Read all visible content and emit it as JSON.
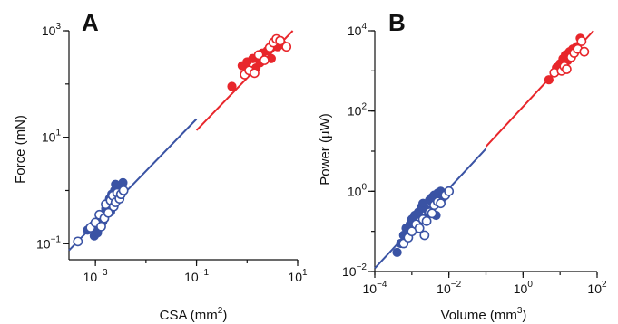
{
  "colors": {
    "blue": "#3a53a4",
    "red": "#e8262b",
    "axis": "#111111"
  },
  "chart_data": [
    {
      "type": "scatter",
      "panel_label": "A",
      "xlabel": "CSA (mm",
      "xlabel_sup": "2",
      "xlabel_end": ")",
      "ylabel": "Force (mN)",
      "x_scale": "log",
      "y_scale": "log",
      "xlim": [
        0.0003,
        10
      ],
      "ylim": [
        0.05,
        1000
      ],
      "x_ticks": [
        {
          "value": 0.001,
          "base": "10",
          "exp": "−3"
        },
        {
          "value": 0.1,
          "base": "10",
          "exp": "−1"
        },
        {
          "value": 10,
          "base": "10",
          "exp": "1"
        }
      ],
      "y_ticks": [
        {
          "value": 0.1,
          "base": "10",
          "exp": "−1"
        },
        {
          "value": 10,
          "base": "10",
          "exp": "1"
        },
        {
          "value": 1000,
          "base": "10",
          "exp": "3"
        }
      ],
      "fit_lines": [
        {
          "color": "blue",
          "points": [
            [
              0.0003,
              0.075
            ],
            [
              0.1,
              22
            ]
          ]
        },
        {
          "color": "red",
          "points": [
            [
              0.1,
              13.5
            ],
            [
              8,
              1000
            ]
          ]
        }
      ],
      "series": [
        {
          "color": "blue",
          "fill": "filled",
          "points": [
            [
              0.00095,
              0.14
            ],
            [
              0.0011,
              0.16
            ],
            [
              0.0012,
              0.22
            ],
            [
              0.0013,
              0.3
            ],
            [
              0.0014,
              0.26
            ],
            [
              0.0016,
              0.45
            ],
            [
              0.0017,
              0.5
            ],
            [
              0.0018,
              0.6
            ],
            [
              0.0019,
              0.7
            ],
            [
              0.002,
              0.4
            ],
            [
              0.0021,
              0.85
            ],
            [
              0.0022,
              0.55
            ],
            [
              0.0024,
              1.0
            ],
            [
              0.0026,
              0.75
            ],
            [
              0.0028,
              1.2
            ],
            [
              0.003,
              1.1
            ],
            [
              0.0032,
              1.0
            ],
            [
              0.0035,
              1.4
            ],
            [
              0.0025,
              1.3
            ],
            [
              0.0015,
              0.35
            ],
            [
              0.0009,
              0.22
            ],
            [
              0.0007,
              0.18
            ]
          ]
        },
        {
          "color": "blue",
          "fill": "open",
          "points": [
            [
              0.00045,
              0.11
            ],
            [
              0.0008,
              0.2
            ],
            [
              0.001,
              0.25
            ],
            [
              0.0012,
              0.35
            ],
            [
              0.0013,
              0.21
            ],
            [
              0.0015,
              0.3
            ],
            [
              0.0016,
              0.55
            ],
            [
              0.0018,
              0.38
            ],
            [
              0.002,
              0.65
            ],
            [
              0.0022,
              0.8
            ],
            [
              0.0023,
              0.5
            ],
            [
              0.0025,
              0.6
            ],
            [
              0.0027,
              0.9
            ],
            [
              0.003,
              0.7
            ],
            [
              0.0032,
              0.85
            ],
            [
              0.0036,
              1.0
            ]
          ]
        },
        {
          "color": "red",
          "fill": "filled",
          "points": [
            [
              0.5,
              90
            ],
            [
              0.8,
              220
            ],
            [
              1.0,
              260
            ],
            [
              1.3,
              300
            ],
            [
              1.5,
              200
            ],
            [
              1.8,
              250
            ],
            [
              2.0,
              380
            ],
            [
              2.5,
              420
            ],
            [
              3.0,
              300
            ],
            [
              4.0,
              500
            ],
            [
              5.0,
              550
            ]
          ]
        },
        {
          "color": "red",
          "fill": "open",
          "points": [
            [
              0.9,
              150
            ],
            [
              1.1,
              180
            ],
            [
              1.4,
              160
            ],
            [
              1.7,
              350
            ],
            [
              2.2,
              280
            ],
            [
              2.8,
              480
            ],
            [
              3.3,
              600
            ],
            [
              3.8,
              700
            ],
            [
              4.5,
              650
            ],
            [
              6.0,
              500
            ]
          ]
        }
      ]
    },
    {
      "type": "scatter",
      "panel_label": "B",
      "xlabel": "Volume (mm",
      "xlabel_sup": "3",
      "xlabel_end": ")",
      "ylabel": "Power (µW)",
      "x_scale": "log",
      "y_scale": "log",
      "xlim": [
        0.0001,
        100
      ],
      "ylim": [
        0.01,
        10000
      ],
      "x_ticks": [
        {
          "value": 0.0001,
          "base": "10",
          "exp": "−4"
        },
        {
          "value": 0.01,
          "base": "10",
          "exp": "−2"
        },
        {
          "value": 1,
          "base": "10",
          "exp": "0"
        },
        {
          "value": 100,
          "base": "10",
          "exp": "2"
        }
      ],
      "y_ticks": [
        {
          "value": 0.01,
          "base": "10",
          "exp": "−2"
        },
        {
          "value": 1,
          "base": "10",
          "exp": "0"
        },
        {
          "value": 100,
          "base": "10",
          "exp": "2"
        },
        {
          "value": 10000,
          "base": "10",
          "exp": "4"
        }
      ],
      "fit_lines": [
        {
          "color": "blue",
          "points": [
            [
              0.0001,
              0.012
            ],
            [
              0.1,
              11.5
            ]
          ]
        },
        {
          "color": "red",
          "points": [
            [
              0.1,
              13
            ],
            [
              80,
              10000
            ]
          ]
        }
      ],
      "series": [
        {
          "color": "blue",
          "fill": "filled",
          "points": [
            [
              0.0004,
              0.03
            ],
            [
              0.0005,
              0.05
            ],
            [
              0.0006,
              0.08
            ],
            [
              0.0007,
              0.12
            ],
            [
              0.0008,
              0.1
            ],
            [
              0.001,
              0.2
            ],
            [
              0.0012,
              0.25
            ],
            [
              0.0015,
              0.3
            ],
            [
              0.0018,
              0.4
            ],
            [
              0.002,
              0.5
            ],
            [
              0.0025,
              0.35
            ],
            [
              0.003,
              0.6
            ],
            [
              0.0035,
              0.7
            ],
            [
              0.004,
              0.8
            ],
            [
              0.005,
              0.9
            ],
            [
              0.006,
              1.0
            ],
            [
              0.007,
              0.7
            ],
            [
              0.0045,
              0.25
            ],
            [
              0.0009,
              0.15
            ]
          ]
        },
        {
          "color": "blue",
          "fill": "open",
          "points": [
            [
              0.0006,
              0.05
            ],
            [
              0.0008,
              0.07
            ],
            [
              0.001,
              0.1
            ],
            [
              0.0013,
              0.15
            ],
            [
              0.0016,
              0.12
            ],
            [
              0.002,
              0.2
            ],
            [
              0.0025,
              0.18
            ],
            [
              0.003,
              0.3
            ],
            [
              0.0035,
              0.28
            ],
            [
              0.004,
              0.45
            ],
            [
              0.005,
              0.55
            ],
            [
              0.006,
              0.5
            ],
            [
              0.008,
              0.8
            ],
            [
              0.01,
              1.0
            ],
            [
              0.0022,
              0.08
            ]
          ]
        },
        {
          "color": "red",
          "fill": "filled",
          "points": [
            [
              5,
              600
            ],
            [
              8,
              1200
            ],
            [
              10,
              1500
            ],
            [
              12,
              2000
            ],
            [
              14,
              2500
            ],
            [
              16,
              1800
            ],
            [
              18,
              3000
            ],
            [
              22,
              3500
            ],
            [
              28,
              4000
            ],
            [
              35,
              6500
            ]
          ]
        },
        {
          "color": "red",
          "fill": "open",
          "points": [
            [
              7,
              900
            ],
            [
              11,
              1000
            ],
            [
              13,
              1300
            ],
            [
              15,
              1100
            ],
            [
              20,
              2200
            ],
            [
              24,
              2800
            ],
            [
              30,
              3500
            ],
            [
              38,
              5500
            ],
            [
              45,
              3000
            ]
          ]
        }
      ]
    }
  ]
}
